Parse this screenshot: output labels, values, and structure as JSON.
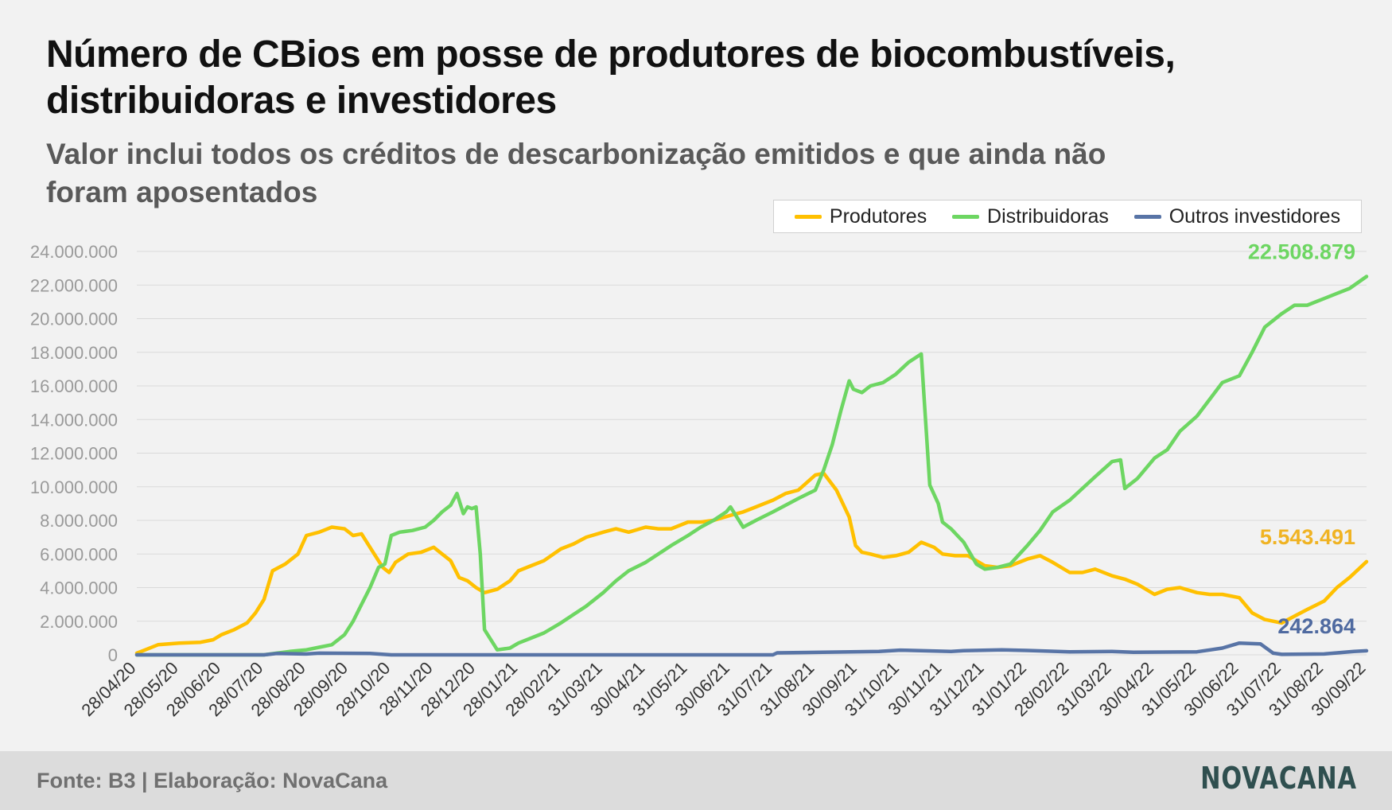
{
  "title": "Número de CBios em posse de produtores de biocombustíveis, distribuidoras e investidores",
  "subtitle": "Valor inclui todos os créditos de descarbonização emitidos e que ainda não foram aposentados",
  "footer": {
    "source": "Fonte: B3 | Elaboração: NovaCana",
    "logo": "NOVACANA"
  },
  "chart_data": {
    "type": "line",
    "legend_position": "top-right",
    "grid": true,
    "ylim": [
      0,
      24000000
    ],
    "yticks": [
      "0",
      "2.000.000",
      "4.000.000",
      "6.000.000",
      "8.000.000",
      "10.000.000",
      "12.000.000",
      "14.000.000",
      "16.000.000",
      "18.000.000",
      "20.000.000",
      "22.000.000",
      "24.000.000"
    ],
    "ytick_values": [
      0,
      2000000,
      4000000,
      6000000,
      8000000,
      10000000,
      12000000,
      14000000,
      16000000,
      18000000,
      20000000,
      22000000,
      24000000
    ],
    "xticks": [
      "28/04/20",
      "28/05/20",
      "28/06/20",
      "28/07/20",
      "28/08/20",
      "28/09/20",
      "28/10/20",
      "28/11/20",
      "28/12/20",
      "28/01/21",
      "28/02/21",
      "31/03/21",
      "30/04/21",
      "31/05/21",
      "30/06/21",
      "31/07/21",
      "31/08/21",
      "30/09/21",
      "31/10/21",
      "30/11/21",
      "31/12/21",
      "31/01/22",
      "28/02/22",
      "31/03/22",
      "30/04/22",
      "31/05/22",
      "30/06/22",
      "31/07/22",
      "31/08/22",
      "30/09/22"
    ],
    "series": [
      {
        "name": "Produtores",
        "color": "#ffc000",
        "end_label": "5.543.491",
        "x": [
          0,
          0.2,
          0.5,
          1,
          1.5,
          1.8,
          2,
          2.3,
          2.6,
          2.8,
          3.0,
          3.2,
          3.5,
          3.8,
          4.0,
          4.3,
          4.6,
          4.9,
          5.1,
          5.3,
          5.6,
          5.8,
          5.95,
          6.1,
          6.4,
          6.7,
          7.0,
          7.2,
          7.4,
          7.6,
          7.8,
          8.0,
          8.2,
          8.5,
          8.8,
          9.0,
          9.3,
          9.6,
          10.0,
          10.3,
          10.6,
          11.0,
          11.3,
          11.6,
          12.0,
          12.3,
          12.6,
          13.0,
          13.3,
          13.6,
          14.0,
          14.3,
          14.6,
          15.0,
          15.3,
          15.6,
          16.0,
          16.2,
          16.5,
          16.8,
          16.95,
          17.1,
          17.3,
          17.6,
          17.9,
          18.2,
          18.5,
          18.8,
          19.0,
          19.3,
          19.6,
          20.0,
          20.3,
          20.6,
          21.0,
          21.3,
          21.6,
          22.0,
          22.3,
          22.6,
          23.0,
          23.3,
          23.6,
          24.0,
          24.3,
          24.6,
          25.0,
          25.3,
          25.6,
          26.0,
          26.3,
          26.6,
          27.0,
          27.3,
          27.6,
          28.0,
          28.3,
          28.6,
          29.0
        ],
        "y": [
          100000,
          300000,
          600000,
          700000,
          750000,
          900000,
          1200000,
          1500000,
          1900000,
          2500000,
          3300000,
          5000000,
          5400000,
          6000000,
          7100000,
          7300000,
          7600000,
          7500000,
          7100000,
          7200000,
          6000000,
          5200000,
          4900000,
          5500000,
          6000000,
          6100000,
          6400000,
          6000000,
          5600000,
          4600000,
          4400000,
          4000000,
          3700000,
          3900000,
          4400000,
          5000000,
          5300000,
          5600000,
          6300000,
          6600000,
          7000000,
          7300000,
          7500000,
          7300000,
          7600000,
          7500000,
          7500000,
          7900000,
          7900000,
          8000000,
          8300000,
          8500000,
          8800000,
          9200000,
          9600000,
          9800000,
          10700000,
          10800000,
          9800000,
          8200000,
          6500000,
          6100000,
          6000000,
          5800000,
          5900000,
          6100000,
          6700000,
          6400000,
          6000000,
          5900000,
          5900000,
          5300000,
          5200000,
          5300000,
          5700000,
          5900000,
          5500000,
          4900000,
          4900000,
          5100000,
          4700000,
          4500000,
          4200000,
          3600000,
          3900000,
          4000000,
          3700000,
          3600000,
          3600000,
          3400000,
          2500000,
          2100000,
          1900000,
          2300000,
          2700000,
          3200000,
          4000000,
          4600000,
          5543491
        ]
      },
      {
        "name": "Distribuidoras",
        "color": "#6dd662",
        "end_label": "22.508.879",
        "x": [
          0,
          3.0,
          3.3,
          3.6,
          4.0,
          4.3,
          4.6,
          4.9,
          5.1,
          5.3,
          5.5,
          5.7,
          5.85,
          6.0,
          6.2,
          6.5,
          6.8,
          7.0,
          7.2,
          7.4,
          7.55,
          7.7,
          7.8,
          7.9,
          8.0,
          8.1,
          8.2,
          8.5,
          8.8,
          9.0,
          9.3,
          9.6,
          10.0,
          10.3,
          10.6,
          11.0,
          11.3,
          11.6,
          12.0,
          12.3,
          12.6,
          13.0,
          13.3,
          13.6,
          13.9,
          14.0,
          14.3,
          14.6,
          15.0,
          15.3,
          15.6,
          16.0,
          16.2,
          16.4,
          16.6,
          16.8,
          16.9,
          17.1,
          17.3,
          17.6,
          17.9,
          18.2,
          18.5,
          18.7,
          18.9,
          19.0,
          19.2,
          19.5,
          19.8,
          20.0,
          20.3,
          20.6,
          21.0,
          21.3,
          21.6,
          22.0,
          22.3,
          22.6,
          23.0,
          23.2,
          23.3,
          23.6,
          24.0,
          24.3,
          24.6,
          25.0,
          25.3,
          25.6,
          26.0,
          26.3,
          26.6,
          27.0,
          27.3,
          27.6,
          28.0,
          28.3,
          28.6,
          29.0
        ],
        "y": [
          0,
          0,
          100000,
          200000,
          300000,
          450000,
          600000,
          1200000,
          2000000,
          3000000,
          4000000,
          5200000,
          5400000,
          7100000,
          7300000,
          7400000,
          7600000,
          8000000,
          8500000,
          8900000,
          9600000,
          8400000,
          8800000,
          8700000,
          8800000,
          6000000,
          1500000,
          300000,
          400000,
          700000,
          1000000,
          1300000,
          1900000,
          2400000,
          2900000,
          3700000,
          4400000,
          5000000,
          5500000,
          6000000,
          6500000,
          7100000,
          7600000,
          8000000,
          8500000,
          8800000,
          7600000,
          8000000,
          8500000,
          8900000,
          9300000,
          9800000,
          11000000,
          12500000,
          14500000,
          16300000,
          15800000,
          15600000,
          16000000,
          16200000,
          16700000,
          17400000,
          17900000,
          10100000,
          9000000,
          7900000,
          7500000,
          6700000,
          5400000,
          5100000,
          5200000,
          5400000,
          6500000,
          7400000,
          8500000,
          9200000,
          9900000,
          10600000,
          11500000,
          11600000,
          9900000,
          10500000,
          11700000,
          12200000,
          13300000,
          14200000,
          15200000,
          16200000,
          16600000,
          18000000,
          19500000,
          20300000,
          20800000,
          20800000,
          21200000,
          21500000,
          21800000,
          22508879
        ]
      },
      {
        "name": "Outros investidores",
        "color": "#5874a6",
        "end_label": "242.864",
        "x": [
          0,
          3,
          3.3,
          4,
          4.3,
          5.5,
          6,
          9,
          12,
          15,
          15.1,
          17.5,
          18,
          19.2,
          19.5,
          20.4,
          21.0,
          22,
          23,
          23.5,
          25.0,
          25.6,
          26.0,
          26.5,
          26.8,
          27.0,
          28.0,
          28.7,
          29.0
        ],
        "y": [
          0,
          0,
          80000,
          50000,
          100000,
          80000,
          0,
          0,
          0,
          0,
          120000,
          200000,
          280000,
          200000,
          250000,
          300000,
          260000,
          180000,
          200000,
          150000,
          180000,
          400000,
          700000,
          650000,
          100000,
          30000,
          50000,
          200000,
          242864
        ]
      }
    ]
  }
}
